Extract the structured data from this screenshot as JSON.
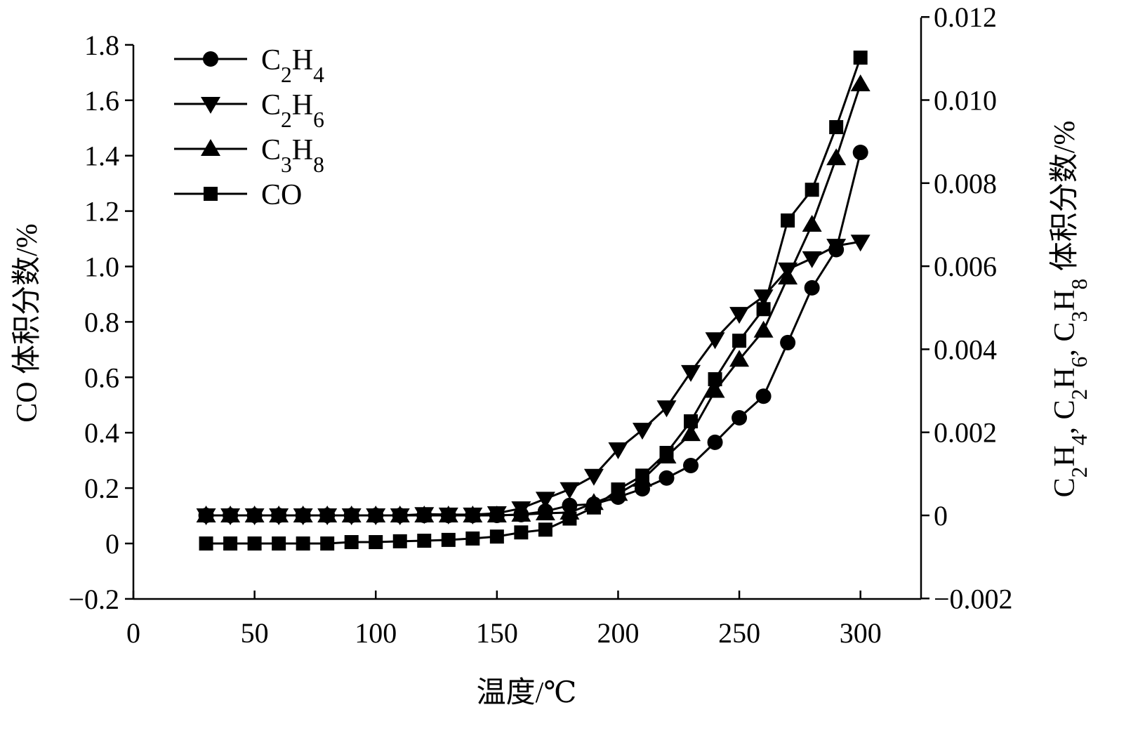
{
  "chart_data": {
    "type": "line",
    "title": "",
    "xlabel": "温度/℃",
    "ylabel_left": "CO 体积分数/%",
    "ylabel_right": "C2H4, C2H6, C3H8 体积分数/%",
    "xlim": [
      0,
      325
    ],
    "ylim_left": [
      -0.2,
      1.8
    ],
    "ylim_right": [
      -0.002,
      0.012
    ],
    "x_ticks": [
      "0",
      "50",
      "100",
      "150",
      "200",
      "250",
      "300"
    ],
    "y_left_ticks": [
      "−0.2",
      "0",
      "0.2",
      "0.4",
      "0.6",
      "0.8",
      "1.0",
      "1.2",
      "1.4",
      "1.6",
      "1.8"
    ],
    "y_right_ticks": [
      "−0.002",
      "0",
      "0.002",
      "0.004",
      "0.006",
      "0.008",
      "0.010",
      "0.012"
    ],
    "grid": false,
    "legend_position": "top-left",
    "x": [
      30,
      40,
      50,
      60,
      70,
      80,
      90,
      100,
      110,
      120,
      130,
      140,
      150,
      160,
      170,
      180,
      190,
      200,
      210,
      220,
      230,
      240,
      250,
      260,
      270,
      280,
      290,
      300
    ],
    "series": [
      {
        "name": "C2H4",
        "axis": "right",
        "marker": "circle",
        "values": [
          0,
          0,
          0,
          0,
          0,
          0,
          0,
          0,
          0,
          0,
          0,
          0,
          0,
          2e-05,
          0.0001,
          0.00024,
          0.00027,
          0.00044,
          0.00064,
          0.0009,
          0.0012,
          0.00176,
          0.00235,
          0.00287,
          0.00416,
          0.00548,
          0.0064,
          0.00874
        ]
      },
      {
        "name": "C2H6",
        "axis": "right",
        "marker": "triangle-down",
        "values": [
          0,
          0,
          0,
          0,
          0,
          0,
          0,
          0,
          0,
          3e-05,
          2e-05,
          2e-05,
          5e-05,
          0.00017,
          0.0004,
          0.00063,
          0.00095,
          0.00159,
          0.00206,
          0.0026,
          0.00345,
          0.00424,
          0.00485,
          0.00527,
          0.00592,
          0.00619,
          0.00649,
          0.00659
        ]
      },
      {
        "name": "C3H8",
        "axis": "right",
        "marker": "triangle-up",
        "values": [
          0,
          0,
          0,
          0,
          0,
          0,
          0,
          0,
          0,
          0,
          0,
          0,
          0,
          2e-05,
          5e-05,
          7e-05,
          0.0003,
          0.00052,
          0.00086,
          0.00142,
          0.00196,
          0.003,
          0.00375,
          0.00445,
          0.00573,
          0.007,
          0.0086,
          0.01038
        ]
      },
      {
        "name": "CO",
        "axis": "left",
        "marker": "square",
        "values": [
          0,
          0,
          0,
          0,
          0,
          0,
          0.005,
          0.005,
          0.008,
          0.01,
          0.013,
          0.018,
          0.025,
          0.04,
          0.05,
          0.09,
          0.13,
          0.195,
          0.245,
          0.327,
          0.441,
          0.593,
          0.732,
          0.846,
          1.166,
          1.277,
          1.503,
          1.754
        ]
      }
    ]
  }
}
